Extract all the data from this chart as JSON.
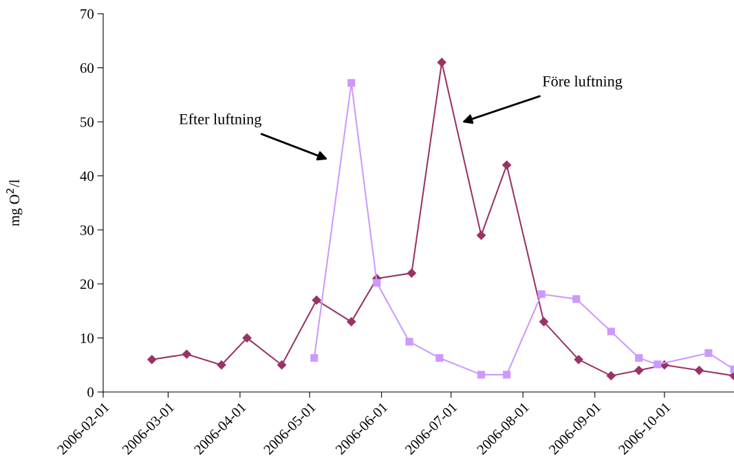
{
  "chart_data": {
    "type": "line",
    "ylabel": "mg O$^{2}$/l",
    "xlim": [
      "2006-02-01",
      "2006-10-31"
    ],
    "xticks": [
      "2006-02-01",
      "2006-03-01",
      "2006-04-01",
      "2006-05-01",
      "2006-06-01",
      "2006-07-01",
      "2006-08-01",
      "2006-09-01",
      "2006-10-01"
    ],
    "ylim": [
      0,
      70
    ],
    "yticks": [
      0,
      10,
      20,
      30,
      40,
      50,
      60,
      70
    ],
    "grid": false,
    "legend": false,
    "line_style": "solid",
    "series": [
      {
        "color": "#993366",
        "marker": "diamond",
        "x": [
          "2006-02-22",
          "2006-03-09",
          "2006-03-24",
          "2006-04-04",
          "2006-04-19",
          "2006-05-04",
          "2006-05-19",
          "2006-05-30",
          "2006-06-14",
          "2006-06-27",
          "2006-07-14",
          "2006-07-25",
          "2006-08-10",
          "2006-08-25",
          "2006-09-08",
          "2006-09-20",
          "2006-10-01",
          "2006-10-16",
          "2006-10-31"
        ],
        "values": [
          6,
          7,
          5,
          10,
          5,
          17,
          13,
          21,
          22,
          61,
          29,
          42,
          13,
          6,
          3,
          4,
          5,
          4,
          3
        ]
      },
      {
        "color": "#cc99ff",
        "marker": "square",
        "x": [
          "2006-05-03",
          "2006-05-19",
          "2006-05-30",
          "2006-06-13",
          "2006-06-26",
          "2006-07-14",
          "2006-07-25",
          "2006-08-09",
          "2006-08-24",
          "2006-09-08",
          "2006-09-20",
          "2006-09-28",
          "2006-10-20",
          "2006-10-31"
        ],
        "values": [
          6.3,
          57.2,
          20.2,
          9.3,
          6.3,
          3.2,
          3.2,
          18.1,
          17.2,
          11.2,
          6.3,
          5.1,
          7.2,
          4.2
        ]
      }
    ],
    "annotations": [
      "Efter luftning",
      "Före luftning"
    ]
  }
}
